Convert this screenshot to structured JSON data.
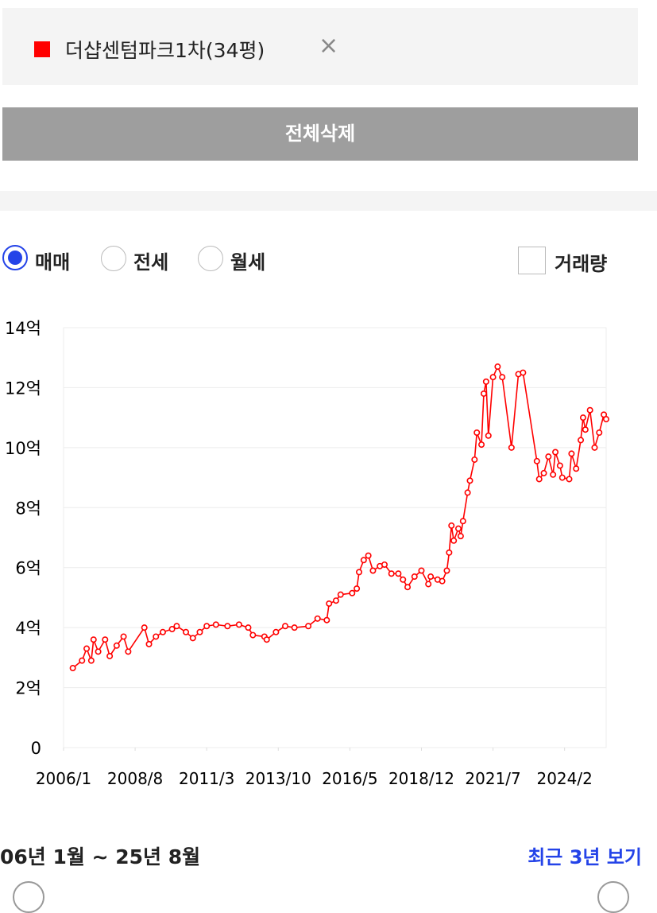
{
  "filter": {
    "label": "더샵센텀파크1차(34평)",
    "close": "×",
    "delete_all": "전체삭제"
  },
  "options": {
    "trade_types": [
      "매매",
      "전세",
      "월세"
    ],
    "volume": "거래량"
  },
  "chart_data": {
    "type": "line",
    "x": [
      "2006/5",
      "2006/9",
      "2006/11",
      "2007/1",
      "2007/2",
      "2007/4",
      "2007/7",
      "2007/9",
      "2007/12",
      "2008/3",
      "2008/5",
      "2008/12",
      "2009/2",
      "2009/5",
      "2009/8",
      "2009/12",
      "2010/2",
      "2010/6",
      "2010/9",
      "2010/12",
      "2011/3",
      "2011/7",
      "2011/12",
      "2012/5",
      "2012/9",
      "2012/11",
      "2013/4",
      "2013/5",
      "2013/9",
      "2014/1",
      "2014/5",
      "2014/11",
      "2015/3",
      "2015/7",
      "2015/8",
      "2015/11",
      "2016/1",
      "2016/6",
      "2016/8",
      "2016/9",
      "2016/11",
      "2017/1",
      "2017/3",
      "2017/6",
      "2017/8",
      "2017/11",
      "2018/2",
      "2018/4",
      "2018/6",
      "2018/9",
      "2018/12",
      "2019/3",
      "2019/4",
      "2019/7",
      "2019/9",
      "2019/11",
      "2019/12",
      "2020/1",
      "2020/2",
      "2020/4",
      "2020/5",
      "2020/6",
      "2020/8",
      "2020/9",
      "2020/11",
      "2020/12",
      "2021/2",
      "2021/3",
      "2021/4",
      "2021/5",
      "2021/7",
      "2021/9",
      "2021/11",
      "2022/3",
      "2022/6",
      "2022/8",
      "2023/2",
      "2023/3",
      "2023/5",
      "2023/7",
      "2023/9",
      "2023/10",
      "2023/12",
      "2024/1",
      "2024/4",
      "2024/5",
      "2024/7",
      "2024/9",
      "2024/10",
      "2024/11",
      "2025/1",
      "2025/3",
      "2025/5",
      "2025/7",
      "2025/8"
    ],
    "series": [
      {
        "color": "#ff0000",
        "values": [
          2.65,
          2.9,
          3.3,
          2.9,
          3.6,
          3.2,
          3.6,
          3.05,
          3.4,
          3.7,
          3.2,
          4.0,
          3.45,
          3.7,
          3.85,
          3.95,
          4.05,
          3.85,
          3.65,
          3.85,
          4.05,
          4.1,
          4.05,
          4.1,
          4.0,
          3.75,
          3.7,
          3.6,
          3.85,
          4.05,
          4.0,
          4.05,
          4.3,
          4.25,
          4.8,
          4.9,
          5.1,
          5.15,
          5.3,
          5.85,
          6.25,
          6.4,
          5.9,
          6.05,
          6.1,
          5.8,
          5.8,
          5.6,
          5.35,
          5.7,
          5.9,
          5.45,
          5.7,
          5.6,
          5.55,
          5.9,
          6.5,
          7.4,
          6.9,
          7.3,
          7.05,
          7.55,
          8.5,
          8.9,
          9.6,
          10.5,
          10.1,
          11.8,
          12.2,
          10.4,
          12.35,
          12.7,
          12.35,
          10.0,
          12.45,
          12.5,
          9.55,
          8.95,
          9.15,
          9.7,
          9.1,
          9.85,
          9.4,
          9.0,
          8.95,
          9.8,
          9.3,
          10.25,
          11.0,
          10.6,
          11.25,
          10.0,
          10.5,
          11.1,
          10.95
        ]
      }
    ],
    "xlim": [
      "2006/1",
      "2025/8"
    ],
    "xticks": [
      "2006/1",
      "2008/8",
      "2011/3",
      "2013/10",
      "2016/5",
      "2018/12",
      "2021/7",
      "2024/2"
    ],
    "ylim": [
      0,
      14
    ],
    "yticks": [
      0,
      {
        "value": 2,
        "label": "2억"
      },
      {
        "value": 4,
        "label": "4억"
      },
      {
        "value": 6,
        "label": "6억"
      },
      {
        "value": 8,
        "label": "8억"
      },
      {
        "value": 10,
        "label": "10억"
      },
      {
        "value": 12,
        "label": "12억"
      },
      {
        "value": 14,
        "label": "14억"
      }
    ],
    "grid": true
  },
  "period": {
    "label": "06년 1월 ~ 25년 8월",
    "recent": "최근 3년 보기"
  }
}
